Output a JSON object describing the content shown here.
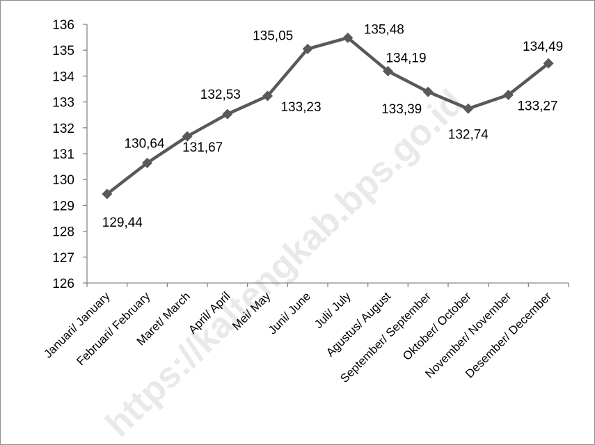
{
  "chart_data": {
    "type": "line",
    "categories": [
      "Januari/ January",
      "Februari/ February",
      "Maret/ March",
      "April/ April",
      "Mei/ May",
      "Juni/ June",
      "Juli/ July",
      "Agustus/ August",
      "September/ September",
      "Oktober/ October",
      "November/ November",
      "Desember/ December"
    ],
    "values": [
      129.44,
      130.64,
      131.67,
      132.53,
      133.23,
      135.05,
      135.48,
      134.19,
      133.39,
      132.74,
      133.27,
      134.49
    ],
    "data_labels": [
      "129,44",
      "130,64",
      "131,67",
      "132,53",
      "133,23",
      "135,05",
      "135,48",
      "134,19",
      "133,39",
      "132,74",
      "133,27",
      "134,49"
    ],
    "ylim": [
      126,
      136
    ],
    "yticks": [
      126,
      127,
      128,
      129,
      130,
      131,
      132,
      133,
      134,
      135,
      136
    ],
    "title": "",
    "xlabel": "",
    "ylabel": "",
    "grid": false,
    "legend": "none",
    "line_color": "#595959",
    "marker": "diamond"
  },
  "watermark": "https://kaltengkab.bps.go.id"
}
